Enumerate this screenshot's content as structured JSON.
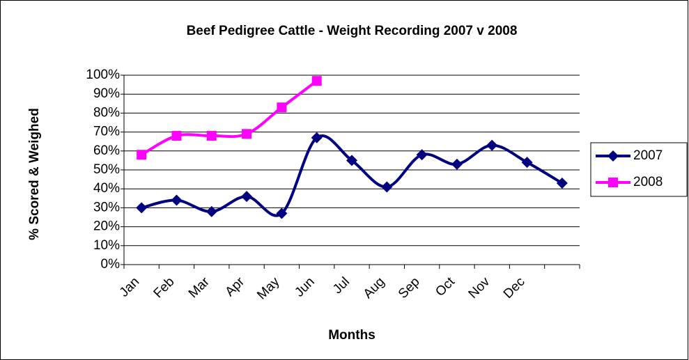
{
  "chart_data": {
    "type": "line",
    "title": "Beef Pedigree Cattle - Weight Recording 2007 v 2008",
    "x_label": "Months",
    "y_label": "% Scored & Weighed",
    "categories": [
      "Jan",
      "Feb",
      "Mar",
      "Apr",
      "May",
      "Jun",
      "Jul",
      "Aug",
      "Sep",
      "Oct",
      "Nov",
      "Dec",
      null
    ],
    "series": [
      {
        "name": "2007",
        "color": "#000080",
        "marker": "diamond",
        "values": [
          30,
          34,
          28,
          36,
          27,
          67,
          55,
          41,
          58,
          53,
          63,
          54,
          43
        ]
      },
      {
        "name": "2008",
        "color": "#ff00ff",
        "marker": "square",
        "values": [
          58,
          68,
          68,
          69,
          83,
          97,
          null,
          null,
          null,
          null,
          null,
          null,
          null
        ]
      }
    ],
    "ylim": [
      0,
      100
    ],
    "yticks": [
      {
        "value": 0,
        "label": "0%"
      },
      {
        "value": 10,
        "label": "10%"
      },
      {
        "value": 20,
        "label": "20%"
      },
      {
        "value": 30,
        "label": "30%"
      },
      {
        "value": 40,
        "label": "40%"
      },
      {
        "value": 50,
        "label": "50%"
      },
      {
        "value": 60,
        "label": "60%"
      },
      {
        "value": 70,
        "label": "70%"
      },
      {
        "value": 80,
        "label": "80%"
      },
      {
        "value": 90,
        "label": "90%"
      },
      {
        "value": 100,
        "label": "100%"
      }
    ],
    "grid": true,
    "smooth": true,
    "legend": "right"
  }
}
